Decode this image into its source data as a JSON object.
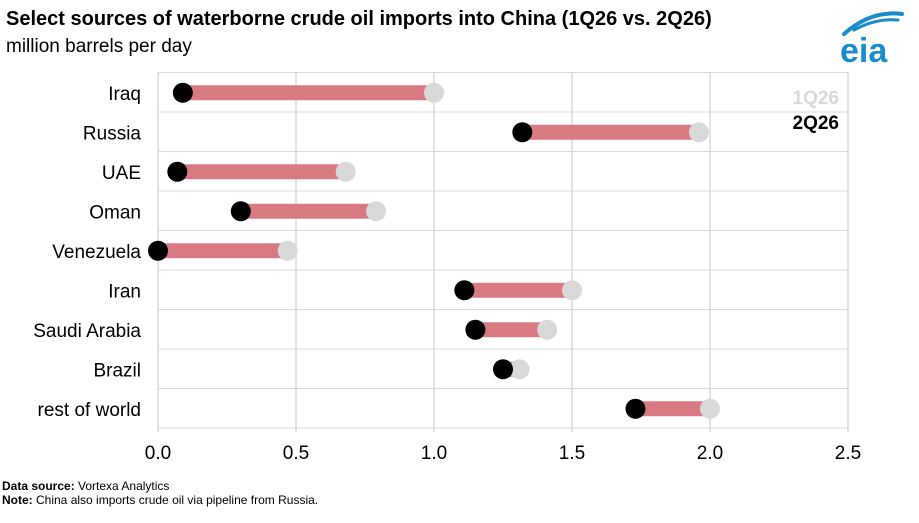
{
  "header": {
    "title": "Select sources of waterborne crude oil imports into China (1Q26 vs. 2Q26)",
    "subtitle": "million barrels per day"
  },
  "logo": {
    "text": "eia",
    "icon": "eia-logo-icon",
    "color": "#1a8cc9"
  },
  "footer": {
    "source_label": "Data source:",
    "source_text": " Vortexa Analytics",
    "note_label": "Note:",
    "note_text": " China also imports crude oil via pipeline from Russia."
  },
  "chart_data": {
    "type": "dumbbell",
    "categories": [
      "Iraq",
      "Russia",
      "UAE",
      "Oman",
      "Venezuela",
      "Iran",
      "Saudi Arabia",
      "Brazil",
      "rest of world"
    ],
    "series": [
      {
        "name": "1Q26",
        "color": "#d9d9d9",
        "values": [
          1.0,
          1.96,
          0.68,
          0.79,
          0.47,
          1.5,
          1.41,
          1.31,
          2.0
        ]
      },
      {
        "name": "2Q26",
        "color": "#000000",
        "values": [
          0.09,
          1.32,
          0.07,
          0.3,
          0.0,
          1.11,
          1.15,
          1.25,
          1.73
        ]
      }
    ],
    "connector_color": "#d97a83",
    "xlim": [
      0,
      2.5
    ],
    "xticks": [
      "0.0",
      "0.5",
      "1.0",
      "1.5",
      "2.0",
      "2.5"
    ],
    "xtick_values": [
      0,
      0.5,
      1.0,
      1.5,
      2.0,
      2.5
    ],
    "grid": true,
    "legend_placement": "top-right"
  }
}
